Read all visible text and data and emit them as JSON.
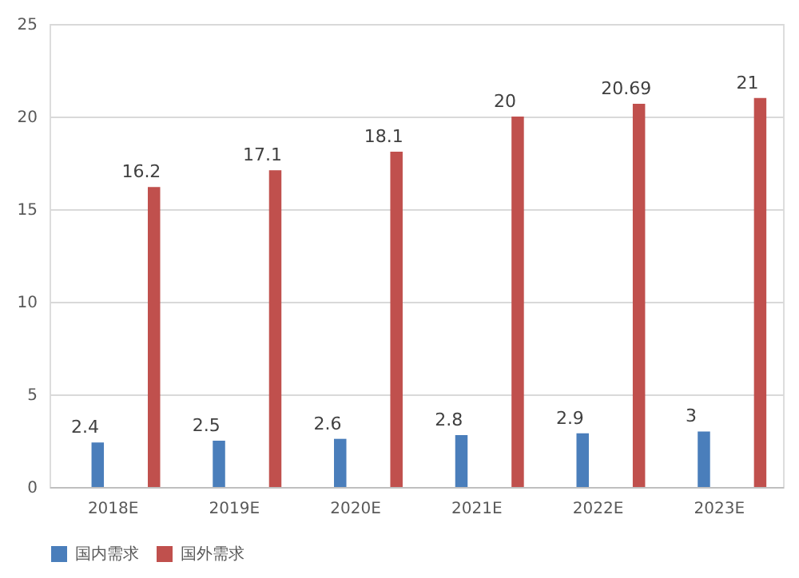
{
  "chart_data": {
    "type": "bar",
    "categories": [
      "2018E",
      "2019E",
      "2020E",
      "2021E",
      "2022E",
      "2023E"
    ],
    "series": [
      {
        "name": "国内需求",
        "color": "#4a7ebb",
        "values": [
          2.4,
          2.5,
          2.6,
          2.8,
          2.9,
          3
        ]
      },
      {
        "name": "国外需求",
        "color": "#c0504d",
        "values": [
          16.2,
          17.1,
          18.1,
          20,
          20.69,
          21
        ]
      }
    ],
    "ylim": [
      0,
      25
    ],
    "yticks": [
      0,
      5,
      10,
      15,
      20,
      25
    ],
    "grid": "y",
    "legend": "bottom",
    "data_labels": true
  }
}
